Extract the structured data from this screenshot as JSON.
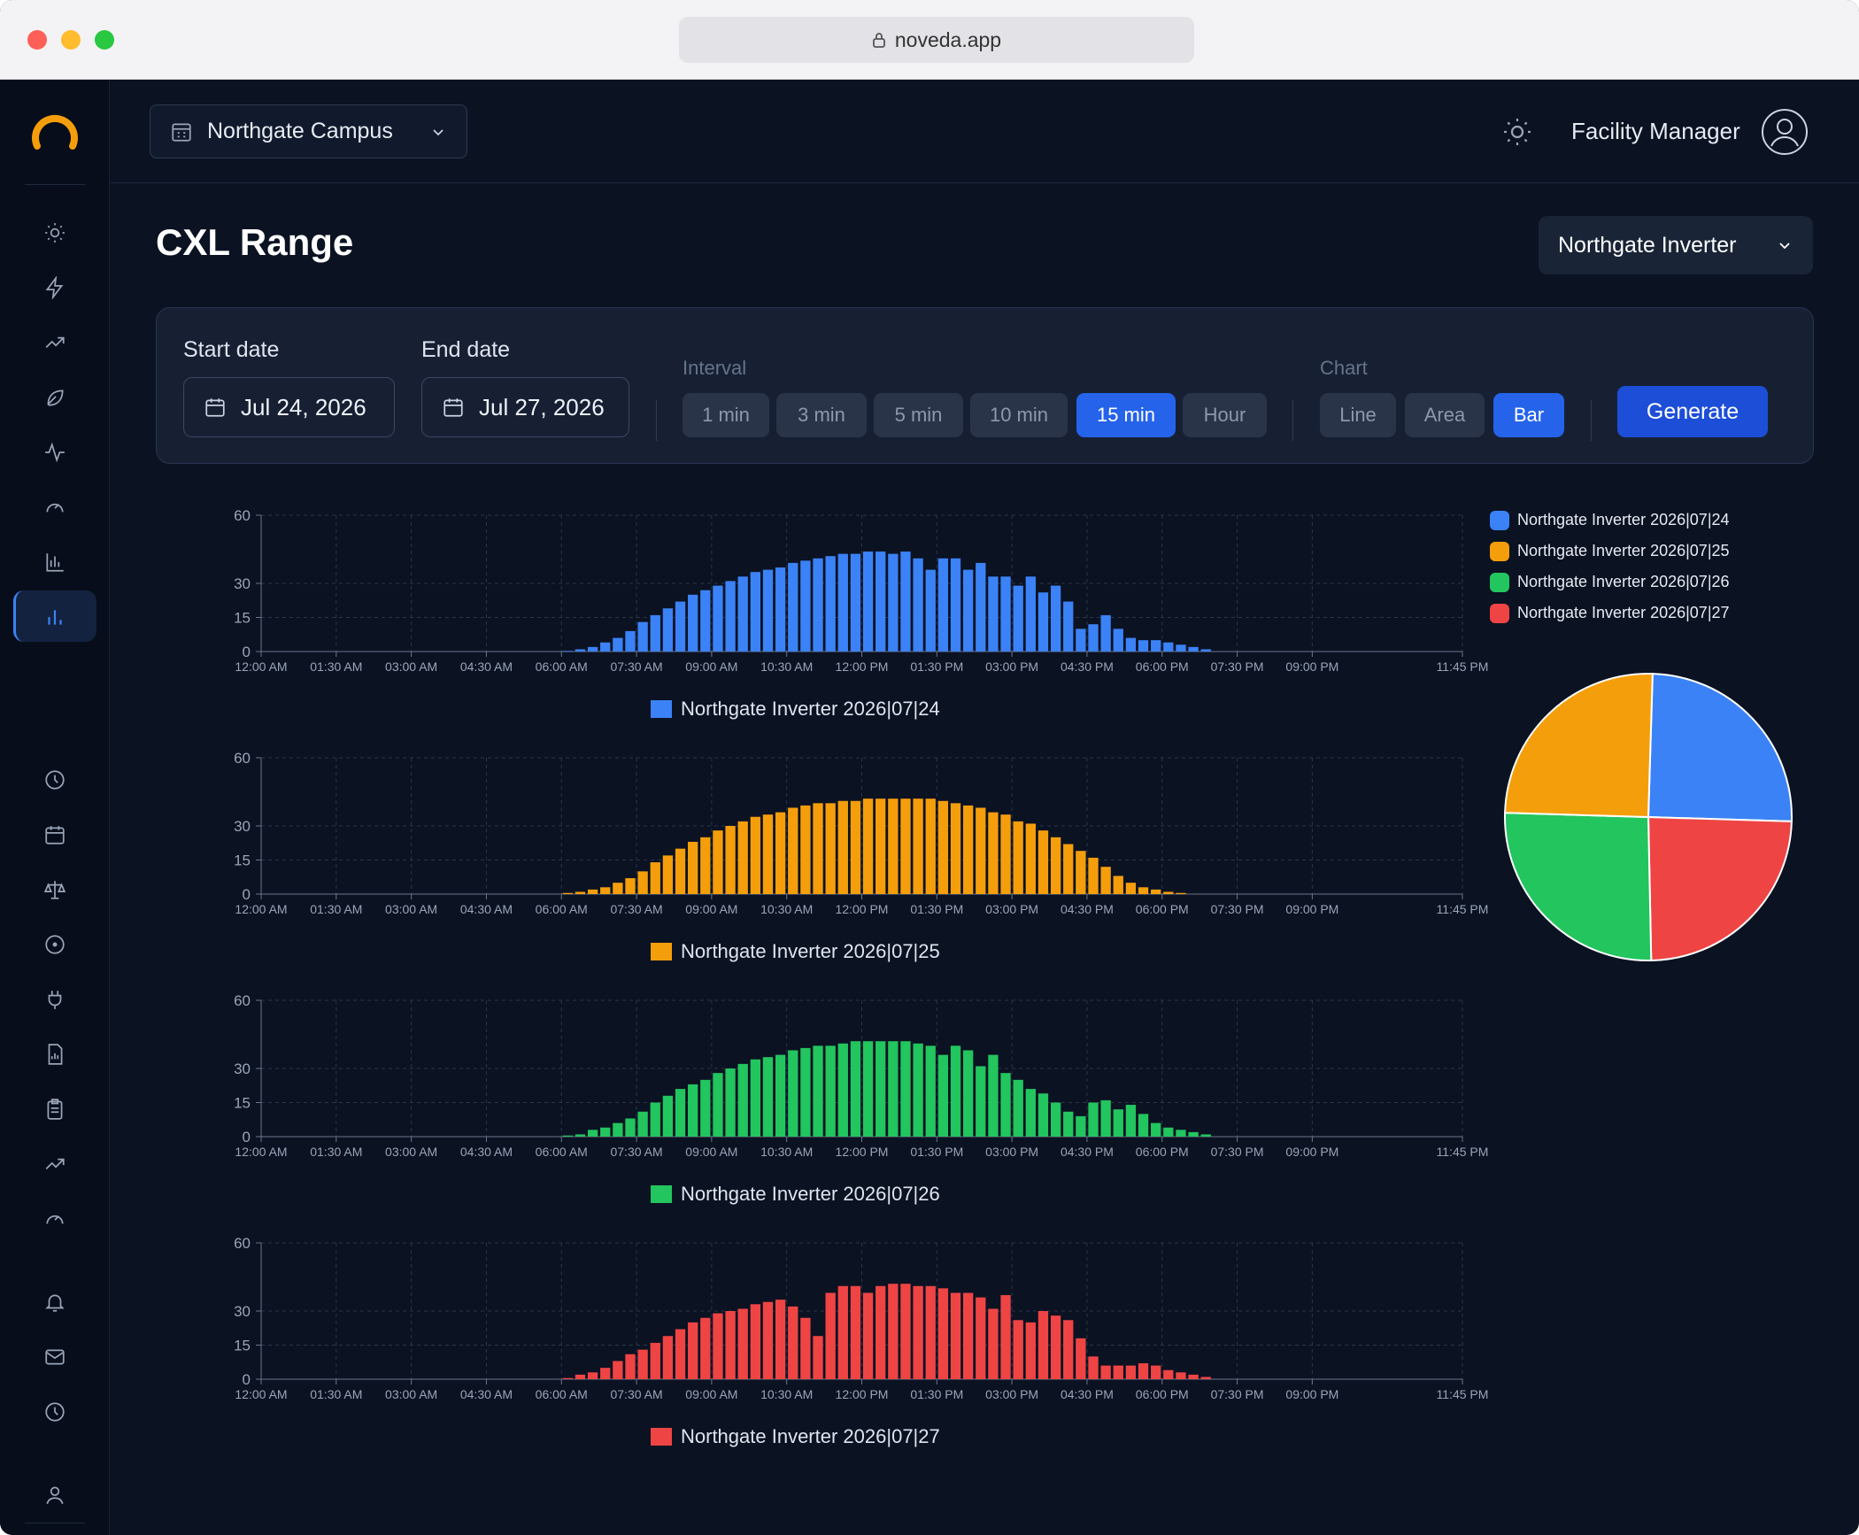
{
  "browser": {
    "url": "noveda.app"
  },
  "header": {
    "site_label": "Northgate Campus",
    "user_name": "Facility Manager"
  },
  "sidebar": {
    "icons": [
      "sun-icon",
      "bolt-icon",
      "trend-up-icon",
      "leaf-icon",
      "pulse-icon",
      "gauge-icon",
      "bar-chart-icon",
      "bar-chart-active-icon",
      "clock-icon",
      "calendar-icon",
      "scale-icon",
      "target-icon",
      "plug-icon",
      "report-icon",
      "clipboard-icon",
      "trend-up-icon",
      "gauge-icon",
      "bell-icon",
      "mail-icon",
      "clock-icon",
      "user-icon",
      "expand-icon"
    ],
    "active": "bar-chart-active-icon"
  },
  "page": {
    "title": "CXL Range",
    "device": "Northgate Inverter"
  },
  "filters": {
    "start_label": "Start date",
    "start_value": "Jul 24, 2026",
    "end_label": "End date",
    "end_value": "Jul 27, 2026",
    "interval_label": "Interval",
    "intervals": [
      "1 min",
      "3 min",
      "5 min",
      "10 min",
      "15 min",
      "Hour"
    ],
    "interval_selected": "15 min",
    "chart_label": "Chart",
    "chart_types": [
      "Line",
      "Area",
      "Bar"
    ],
    "chart_selected": "Bar",
    "generate_label": "Generate"
  },
  "colors": {
    "blue": "#3b82f6",
    "orange": "#f59e0b",
    "green": "#22c55e",
    "red": "#ef4444",
    "accent": "#2563eb"
  },
  "chart_data": [
    {
      "type": "bar",
      "series": [
        {
          "name": "Northgate Inverter 2026|07|24",
          "color": "#3b82f6",
          "values": [
            0,
            0,
            0,
            0,
            0,
            0,
            0,
            0,
            0,
            0,
            0,
            0,
            0,
            0,
            0,
            0,
            0,
            0,
            0,
            0,
            0,
            0,
            0,
            0,
            0.3,
            1,
            2,
            4,
            6,
            9,
            13,
            16,
            19,
            22,
            25,
            27,
            29,
            31,
            33,
            35,
            36,
            37,
            39,
            40,
            41,
            42,
            43,
            43,
            44,
            44,
            43,
            44,
            41,
            36,
            41,
            41,
            36,
            39,
            33,
            33,
            29,
            33,
            26,
            29,
            22,
            10,
            12,
            16,
            10,
            6,
            5,
            5,
            4,
            3,
            2,
            1,
            0,
            0,
            0,
            0,
            0,
            0,
            0,
            0,
            0,
            0,
            0,
            0,
            0,
            0,
            0,
            0,
            0,
            0,
            0,
            0
          ]
        }
      ],
      "x_ticks": [
        "12:00 AM",
        "01:30 AM",
        "03:00 AM",
        "04:30 AM",
        "06:00 AM",
        "07:30 AM",
        "09:00 AM",
        "10:30 AM",
        "12:00 PM",
        "01:30 PM",
        "03:00 PM",
        "04:30 PM",
        "06:00 PM",
        "07:30 PM",
        "09:00 PM",
        "11:45 PM"
      ],
      "y_ticks": [
        0,
        15,
        30,
        60
      ],
      "ylim": [
        0,
        60
      ],
      "grid": true
    },
    {
      "type": "bar",
      "series": [
        {
          "name": "Northgate Inverter 2026|07|25",
          "color": "#f59e0b",
          "values": [
            0,
            0,
            0,
            0,
            0,
            0,
            0,
            0,
            0,
            0,
            0,
            0,
            0,
            0,
            0,
            0,
            0,
            0,
            0,
            0,
            0,
            0,
            0,
            0,
            0.5,
            1,
            2,
            3,
            5,
            7,
            10,
            14,
            17,
            20,
            23,
            25,
            28,
            30,
            32,
            34,
            35,
            36,
            38,
            39,
            40,
            40,
            41,
            41,
            42,
            42,
            42,
            42,
            42,
            42,
            41,
            40,
            39,
            38,
            36,
            35,
            32,
            31,
            28,
            25,
            22,
            19,
            16,
            12,
            8,
            5,
            3,
            2,
            1,
            0.5,
            0,
            0,
            0,
            0,
            0,
            0,
            0,
            0,
            0,
            0,
            0,
            0,
            0,
            0,
            0,
            0,
            0,
            0,
            0,
            0,
            0,
            0
          ]
        }
      ],
      "x_ticks": [
        "12:00 AM",
        "01:30 AM",
        "03:00 AM",
        "04:30 AM",
        "06:00 AM",
        "07:30 AM",
        "09:00 AM",
        "10:30 AM",
        "12:00 PM",
        "01:30 PM",
        "03:00 PM",
        "04:30 PM",
        "06:00 PM",
        "07:30 PM",
        "09:00 PM",
        "11:45 PM"
      ],
      "y_ticks": [
        0,
        15,
        30,
        60
      ],
      "ylim": [
        0,
        60
      ],
      "grid": true
    },
    {
      "type": "bar",
      "series": [
        {
          "name": "Northgate Inverter 2026|07|26",
          "color": "#22c55e",
          "values": [
            0,
            0,
            0,
            0,
            0,
            0,
            0,
            0,
            0,
            0,
            0,
            0,
            0,
            0,
            0,
            0,
            0,
            0,
            0,
            0,
            0,
            0,
            0,
            0,
            0.5,
            1,
            3,
            4,
            6,
            8,
            11,
            15,
            18,
            21,
            23,
            25,
            28,
            30,
            32,
            34,
            35,
            36,
            38,
            39,
            40,
            40,
            41,
            42,
            42,
            42,
            42,
            42,
            41,
            40,
            36,
            40,
            38,
            31,
            36,
            28,
            25,
            21,
            19,
            15,
            11,
            9,
            15,
            16,
            12,
            14,
            10,
            6,
            4,
            3,
            2,
            1,
            0,
            0,
            0,
            0,
            0,
            0,
            0,
            0,
            0,
            0,
            0,
            0,
            0,
            0,
            0,
            0,
            0,
            0,
            0,
            0
          ]
        }
      ],
      "x_ticks": [
        "12:00 AM",
        "01:30 AM",
        "03:00 AM",
        "04:30 AM",
        "06:00 AM",
        "07:30 AM",
        "09:00 AM",
        "10:30 AM",
        "12:00 PM",
        "01:30 PM",
        "03:00 PM",
        "04:30 PM",
        "06:00 PM",
        "07:30 PM",
        "09:00 PM",
        "11:45 PM"
      ],
      "y_ticks": [
        0,
        15,
        30,
        60
      ],
      "ylim": [
        0,
        60
      ],
      "grid": true
    },
    {
      "type": "bar",
      "series": [
        {
          "name": "Northgate Inverter 2026|07|27",
          "color": "#ef4444",
          "values": [
            0,
            0,
            0,
            0,
            0,
            0,
            0,
            0,
            0,
            0,
            0,
            0,
            0,
            0,
            0,
            0,
            0,
            0,
            0,
            0,
            0,
            0,
            0,
            0,
            0.5,
            2,
            3,
            5,
            8,
            11,
            13,
            16,
            19,
            22,
            25,
            27,
            29,
            30,
            31,
            33,
            34,
            35,
            32,
            27,
            19,
            38,
            41,
            41,
            38,
            41,
            42,
            42,
            41,
            41,
            40,
            38,
            38,
            36,
            31,
            37,
            26,
            25,
            30,
            28,
            26,
            18,
            10,
            6,
            6,
            6,
            7,
            6,
            4,
            3,
            2,
            1,
            0,
            0,
            0,
            0,
            0,
            0,
            0,
            0,
            0,
            0,
            0,
            0,
            0,
            0,
            0,
            0,
            0,
            0,
            0,
            0
          ]
        }
      ],
      "x_ticks": [
        "12:00 AM",
        "01:30 AM",
        "03:00 AM",
        "04:30 AM",
        "06:00 AM",
        "07:30 AM",
        "09:00 AM",
        "10:30 AM",
        "12:00 PM",
        "01:30 PM",
        "03:00 PM",
        "04:30 PM",
        "06:00 PM",
        "07:30 PM",
        "09:00 PM",
        "11:45 PM"
      ],
      "y_ticks": [
        0,
        15,
        30,
        60
      ],
      "ylim": [
        0,
        60
      ],
      "grid": true
    },
    {
      "type": "pie",
      "categories": [
        "Northgate Inverter 2026|07|24",
        "Northgate Inverter 2026|07|25",
        "Northgate Inverter 2026|07|26",
        "Northgate Inverter 2026|07|27"
      ],
      "values": [
        25,
        24.2,
        25.8,
        25
      ],
      "colors": [
        "#3b82f6",
        "#ef4444",
        "#22c55e",
        "#f59e0b"
      ],
      "legend_position": "top-right"
    }
  ]
}
